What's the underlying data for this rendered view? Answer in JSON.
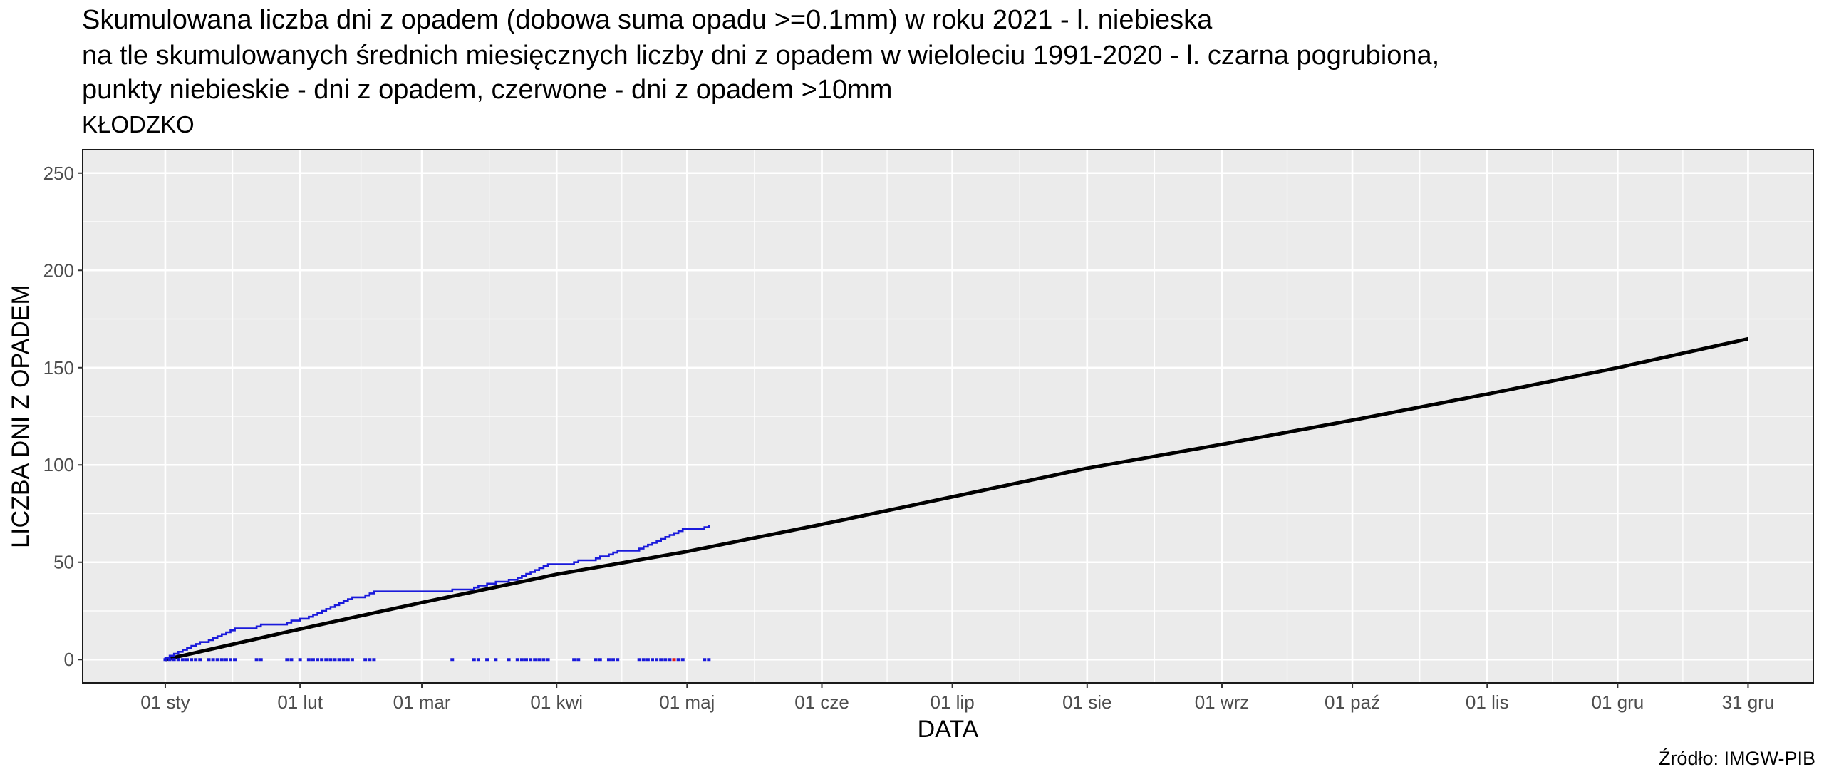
{
  "caption": "Źródło: IMGW-PIB",
  "chart_data": {
    "type": "line",
    "title_lines": [
      "Skumulowana liczba dni z opadem (dobowa suma opadu >=0.1mm) w roku 2021 - l. niebieska",
      "na tle skumulowanych średnich miesięcznych liczby dni z opadem w wieloleciu 1991-2020 - l. czarna pogrubiona,",
      "punkty niebieskie - dni z opadem, czerwone - dni z opadem >10mm"
    ],
    "subtitle": "KŁODZKO",
    "xlabel": "DATA",
    "ylabel": "LICZBA DNI Z OPADEM",
    "xlim": [
      "2020-12-13",
      "2022-01-15"
    ],
    "ylim": [
      -12,
      262
    ],
    "y_ticks": [
      0,
      50,
      100,
      150,
      200,
      250
    ],
    "x_ticks": [
      {
        "date": "2021-01-01",
        "label": "01 sty"
      },
      {
        "date": "2021-02-01",
        "label": "01 lut"
      },
      {
        "date": "2021-03-01",
        "label": "01 mar"
      },
      {
        "date": "2021-04-01",
        "label": "01 kwi"
      },
      {
        "date": "2021-05-01",
        "label": "01 maj"
      },
      {
        "date": "2021-06-01",
        "label": "01 cze"
      },
      {
        "date": "2021-07-01",
        "label": "01 lip"
      },
      {
        "date": "2021-08-01",
        "label": "01 sie"
      },
      {
        "date": "2021-09-01",
        "label": "01 wrz"
      },
      {
        "date": "2021-10-01",
        "label": "01 paź"
      },
      {
        "date": "2021-11-01",
        "label": "01 lis"
      },
      {
        "date": "2021-12-01",
        "label": "01 gru"
      },
      {
        "date": "2021-12-31",
        "label": "31 gru"
      }
    ],
    "grid": true,
    "legend": "none",
    "colors": {
      "panel": "#ebebeb",
      "grid": "#ffffff",
      "norm_line": "#000000",
      "year_line": "#1a1adb",
      "rain_point": "#1a1adb",
      "heavy_point": "#e31a1c"
    },
    "series": [
      {
        "points": [
          [
            "2021-01-01",
            0
          ],
          [
            "2021-02-01",
            15.7
          ],
          [
            "2021-03-01",
            29.3
          ],
          [
            "2021-04-01",
            43.8
          ],
          [
            "2021-05-01",
            55.5
          ],
          [
            "2021-06-01",
            69.5
          ],
          [
            "2021-07-01",
            83.6
          ],
          [
            "2021-08-01",
            98.3
          ],
          [
            "2021-09-01",
            110.6
          ],
          [
            "2021-10-01",
            123.0
          ],
          [
            "2021-11-01",
            136.4
          ],
          [
            "2021-12-01",
            150.0
          ],
          [
            "2021-12-31",
            164.8
          ]
        ]
      },
      {
        "rain_days": [
          [
            "2021-01-01",
            1
          ],
          [
            "2021-01-02",
            2
          ],
          [
            "2021-01-03",
            3
          ],
          [
            "2021-01-04",
            4
          ],
          [
            "2021-01-05",
            5
          ],
          [
            "2021-01-06",
            6
          ],
          [
            "2021-01-07",
            7
          ],
          [
            "2021-01-08",
            8
          ],
          [
            "2021-01-09",
            9
          ],
          [
            "2021-01-11",
            10
          ],
          [
            "2021-01-12",
            11
          ],
          [
            "2021-01-13",
            12
          ],
          [
            "2021-01-14",
            13
          ],
          [
            "2021-01-15",
            14
          ],
          [
            "2021-01-16",
            15
          ],
          [
            "2021-01-17",
            16
          ],
          [
            "2021-01-22",
            17
          ],
          [
            "2021-01-23",
            18
          ],
          [
            "2021-01-29",
            19
          ],
          [
            "2021-01-30",
            20
          ],
          [
            "2021-02-01",
            21
          ],
          [
            "2021-02-03",
            22
          ],
          [
            "2021-02-04",
            23
          ],
          [
            "2021-02-05",
            24
          ],
          [
            "2021-02-06",
            25
          ],
          [
            "2021-02-07",
            26
          ],
          [
            "2021-02-08",
            27
          ],
          [
            "2021-02-09",
            28
          ],
          [
            "2021-02-10",
            29
          ],
          [
            "2021-02-11",
            30
          ],
          [
            "2021-02-12",
            31
          ],
          [
            "2021-02-13",
            32
          ],
          [
            "2021-02-16",
            33
          ],
          [
            "2021-02-17",
            34
          ],
          [
            "2021-02-18",
            35
          ],
          [
            "2021-03-08",
            36
          ],
          [
            "2021-03-13",
            37
          ],
          [
            "2021-03-14",
            38
          ],
          [
            "2021-03-16",
            39
          ],
          [
            "2021-03-18",
            40
          ],
          [
            "2021-03-21",
            41
          ],
          [
            "2021-03-23",
            42
          ],
          [
            "2021-03-24",
            43
          ],
          [
            "2021-03-25",
            44
          ],
          [
            "2021-03-26",
            45
          ],
          [
            "2021-03-27",
            46
          ],
          [
            "2021-03-28",
            47
          ],
          [
            "2021-03-29",
            48
          ],
          [
            "2021-03-30",
            49
          ],
          [
            "2021-04-05",
            50
          ],
          [
            "2021-04-06",
            51
          ],
          [
            "2021-04-10",
            52
          ],
          [
            "2021-04-11",
            53
          ],
          [
            "2021-04-13",
            54
          ],
          [
            "2021-04-14",
            55
          ],
          [
            "2021-04-15",
            56
          ],
          [
            "2021-04-20",
            57
          ],
          [
            "2021-04-21",
            58
          ],
          [
            "2021-04-22",
            59
          ],
          [
            "2021-04-23",
            60
          ],
          [
            "2021-04-24",
            61
          ],
          [
            "2021-04-25",
            62
          ],
          [
            "2021-04-26",
            63
          ],
          [
            "2021-04-27",
            64
          ],
          [
            "2021-04-28",
            65
          ],
          [
            "2021-04-29",
            66
          ],
          [
            "2021-04-30",
            67
          ],
          [
            "2021-05-05",
            68
          ],
          [
            "2021-05-06",
            69
          ]
        ],
        "end_date": "2021-05-06",
        "heavy_days": [
          "2021-04-28"
        ]
      }
    ]
  }
}
